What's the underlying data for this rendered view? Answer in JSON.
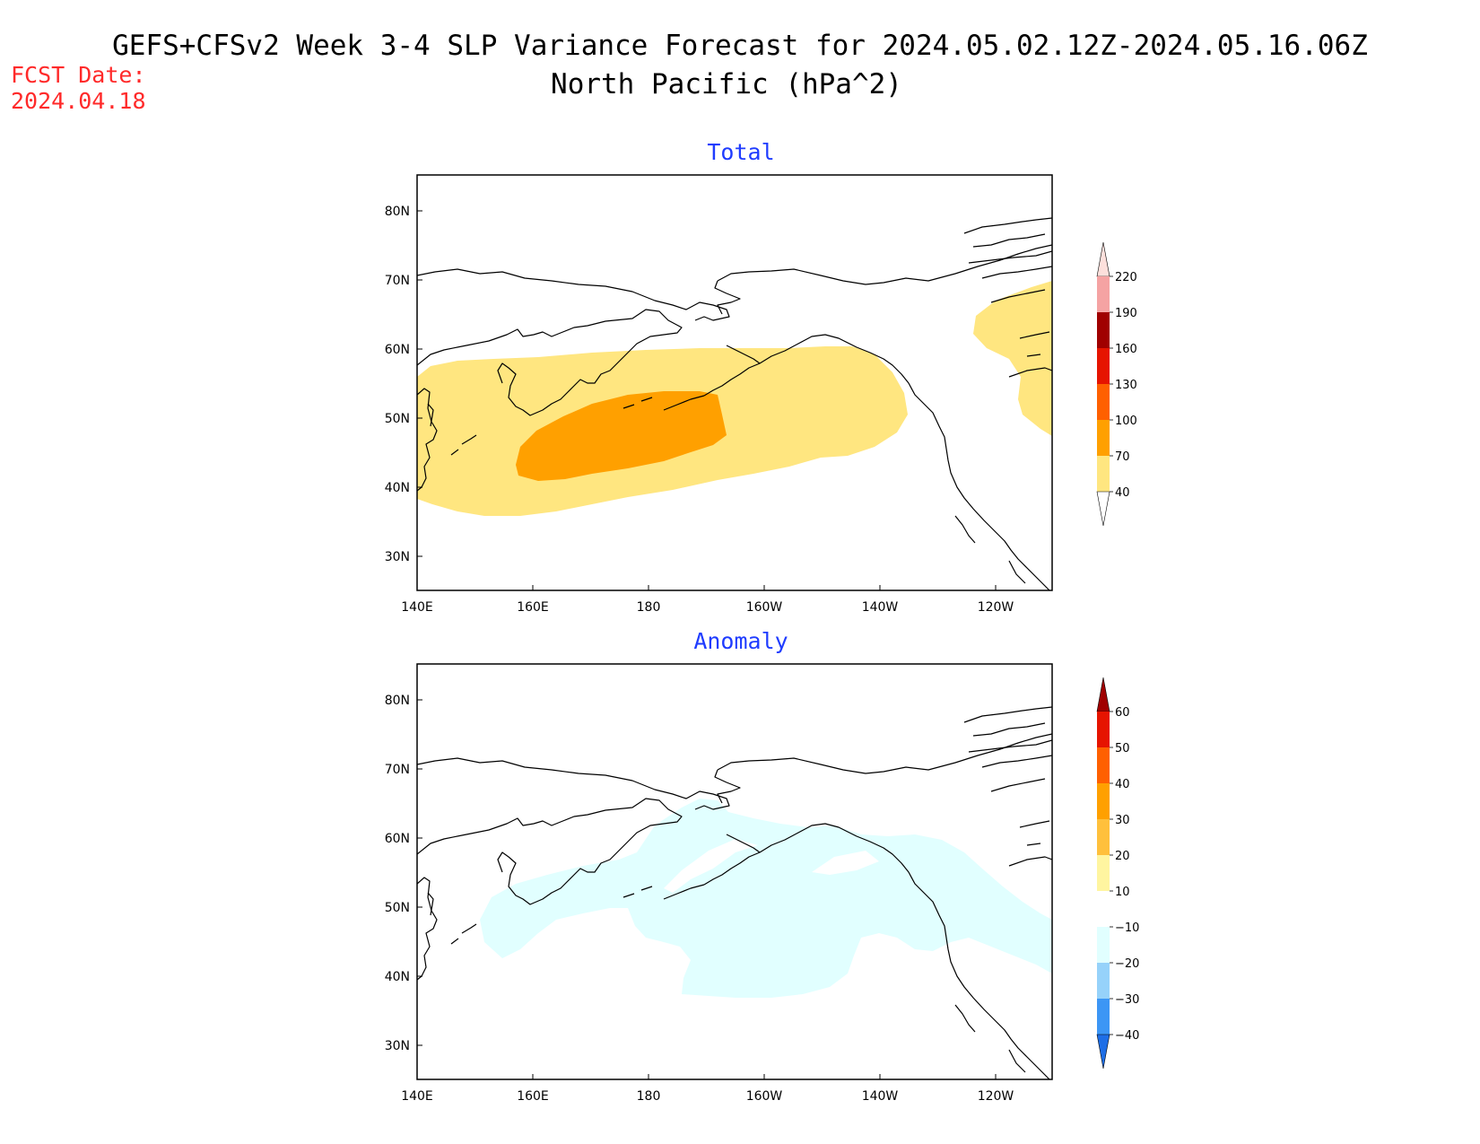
{
  "title": {
    "line1": "GEFS+CFSv2 Week 3-4 SLP Variance Forecast for 2024.05.02.12Z-2024.05.16.06Z",
    "line2": "North Pacific (hPa^2)"
  },
  "fcst_date": {
    "label": "FCST Date:",
    "value": "2024.04.18"
  },
  "axes": {
    "lon_ticks": [
      "140E",
      "160E",
      "180",
      "160W",
      "140W",
      "120W"
    ],
    "lat_ticks": [
      "80N",
      "70N",
      "60N",
      "50N",
      "40N",
      "30N"
    ]
  },
  "chart_data": [
    {
      "type": "heatmap",
      "title": "Total",
      "region": "North Pacific",
      "lon_range": [
        140,
        250
      ],
      "lat_range": [
        25,
        85
      ],
      "colorbar": {
        "levels": [
          40,
          70,
          100,
          130,
          160,
          190,
          220
        ],
        "colors": [
          "#ffe680",
          "#ffa000",
          "#ff6000",
          "#e61400",
          "#a00000",
          "#f5a3a3",
          "#fde0dc"
        ],
        "extend": "both"
      },
      "contour_regions": [
        {
          "level": "40-70",
          "description": "broad band across N Pacific storm track"
        },
        {
          "level": "70-100",
          "description": "core centered near 45N, 180"
        }
      ]
    },
    {
      "type": "heatmap",
      "title": "Anomaly",
      "region": "North Pacific",
      "lon_range": [
        140,
        250
      ],
      "lat_range": [
        25,
        85
      ],
      "colorbar": {
        "levels": [
          -40,
          -30,
          -20,
          -10,
          10,
          20,
          30,
          40,
          50,
          60
        ],
        "colors": [
          "#1e6ee6",
          "#3c96f5",
          "#96d2fa",
          "#e1ffff",
          "#ffffff",
          "#fff5a0",
          "#ffc03c",
          "#ffa000",
          "#ff6000",
          "#e61400",
          "#a00000"
        ],
        "extend": "both"
      },
      "contour_regions": [
        {
          "level": "-20 to -10",
          "description": "weak negative anomaly across Gulf of Alaska and central N Pacific"
        }
      ]
    }
  ],
  "colors": {
    "title": "#000000",
    "fcst_date": "#ff2a2a",
    "panel_title": "#1f3cff",
    "total_low": "#ffe680",
    "total_mid": "#ffa000",
    "anomaly_neg": "#e1ffff"
  }
}
